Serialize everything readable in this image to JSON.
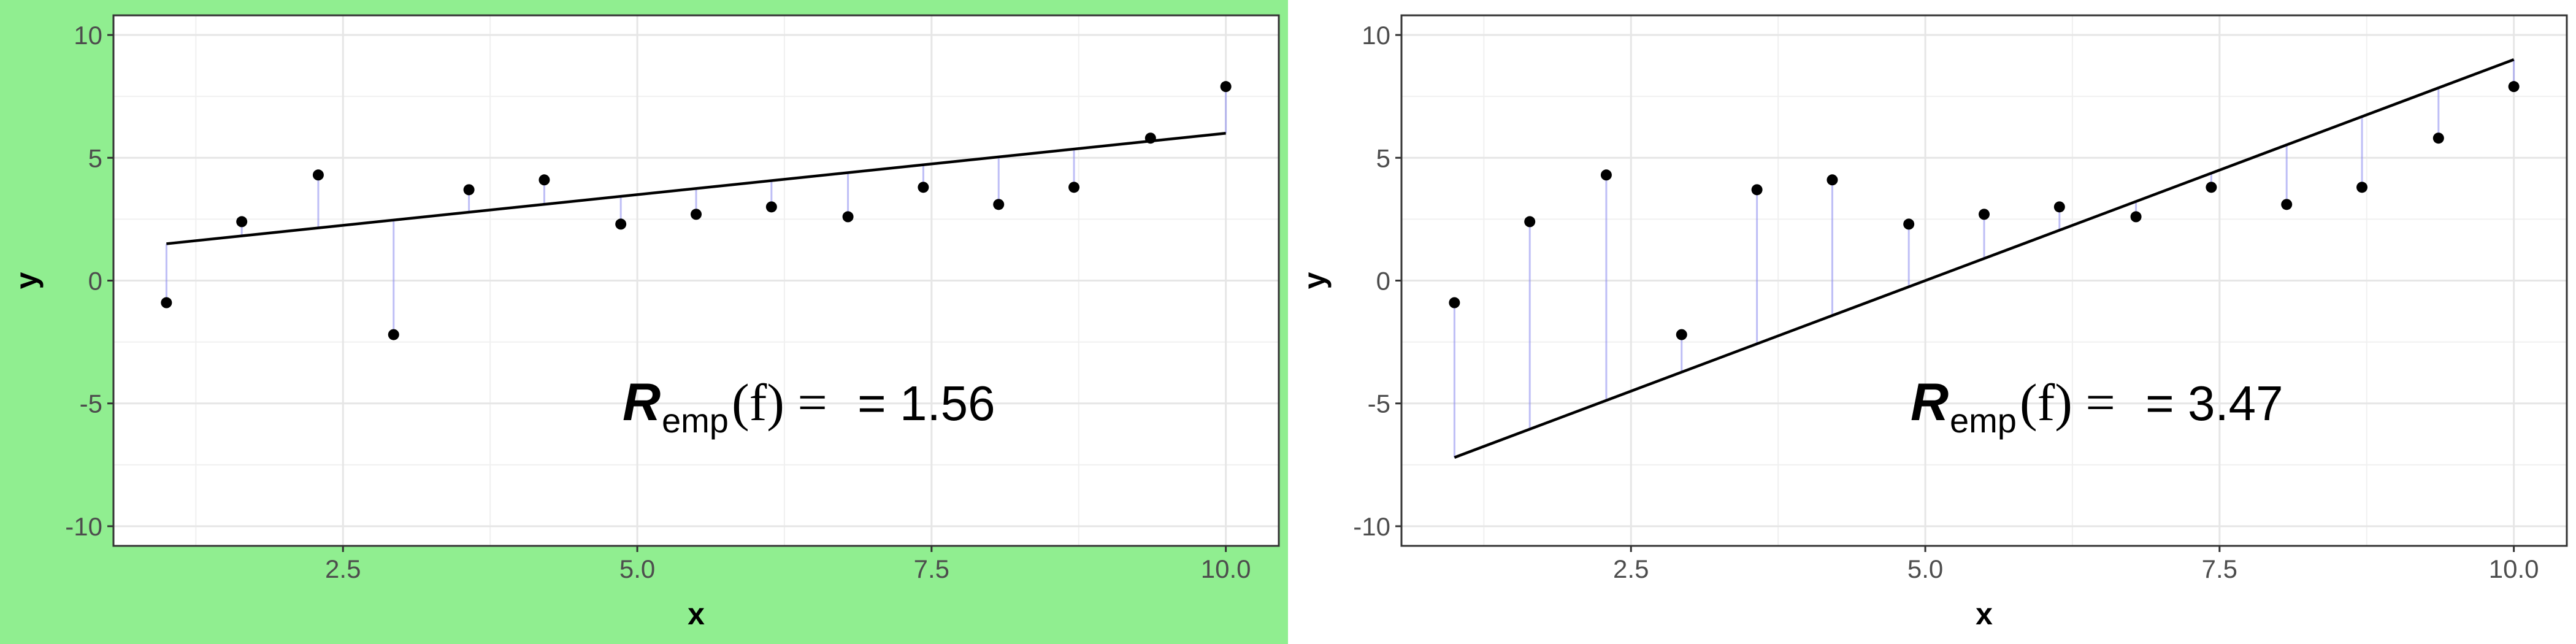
{
  "chart_data": [
    {
      "type": "scatter",
      "highlighted": true,
      "highlight_color": "#90EE90",
      "xlabel": "x",
      "ylabel": "y",
      "xlim": [
        0.55,
        10.45
      ],
      "ylim": [
        -10.8,
        10.8
      ],
      "xticks": [
        "2.5",
        "5.0",
        "7.5",
        "10.0"
      ],
      "yticks": [
        "10",
        "5",
        "0",
        "-5",
        "-10"
      ],
      "grid": true,
      "points": {
        "x": [
          1.0,
          1.64,
          2.29,
          2.93,
          3.57,
          4.21,
          4.86,
          5.5,
          6.14,
          6.79,
          7.43,
          8.07,
          8.71,
          9.36,
          10.0
        ],
        "y": [
          -0.9,
          2.4,
          4.3,
          -2.2,
          3.7,
          4.1,
          2.3,
          2.7,
          3.0,
          2.6,
          3.8,
          3.1,
          3.8,
          5.8,
          7.9
        ]
      },
      "fit_line": {
        "x": [
          1.0,
          10.0
        ],
        "y": [
          1.5,
          6.0
        ]
      },
      "residual_color": "#8888EE",
      "annotation": {
        "R": "R",
        "sub": "emp",
        "func": "(f) =",
        "value": "= 1.56"
      }
    },
    {
      "type": "scatter",
      "highlighted": false,
      "xlabel": "x",
      "ylabel": "y",
      "xlim": [
        0.55,
        10.45
      ],
      "ylim": [
        -10.8,
        10.8
      ],
      "xticks": [
        "2.5",
        "5.0",
        "7.5",
        "10.0"
      ],
      "yticks": [
        "10",
        "5",
        "0",
        "-5",
        "-10"
      ],
      "grid": true,
      "points": {
        "x": [
          1.0,
          1.64,
          2.29,
          2.93,
          3.57,
          4.21,
          4.86,
          5.5,
          6.14,
          6.79,
          7.43,
          8.07,
          8.71,
          9.36,
          10.0
        ],
        "y": [
          -0.9,
          2.4,
          4.3,
          -2.2,
          3.7,
          4.1,
          2.3,
          2.7,
          3.0,
          2.6,
          3.8,
          3.1,
          3.8,
          5.8,
          7.9
        ]
      },
      "fit_line": {
        "x": [
          1.0,
          10.0
        ],
        "y": [
          -7.2,
          9.0
        ]
      },
      "residual_color": "#8888EE",
      "annotation": {
        "R": "R",
        "sub": "emp",
        "func": "(f) =",
        "value": "= 3.47"
      }
    }
  ]
}
